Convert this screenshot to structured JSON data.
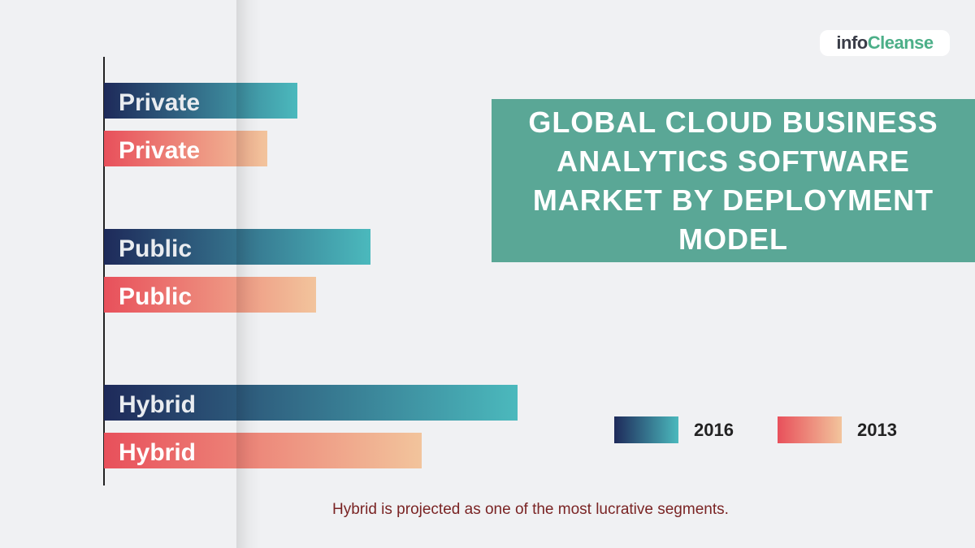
{
  "title": "GLOBAL CLOUD BUSINESS ANALYTICS SOFTWARE MARKET BY DEPLOYMENT MODEL",
  "logo": {
    "part1": "info",
    "part2": "Cleanse"
  },
  "footnote": "Hybrid is projected as one of the most lucrative segments.",
  "colors": {
    "series_2016_start": "#1e2a5a",
    "series_2016_end": "#4bb9bd",
    "series_2013_start": "#e8505b",
    "series_2013_end": "#f2c49c",
    "title_bg": "#5aa796"
  },
  "chart_data": {
    "type": "bar",
    "orientation": "horizontal",
    "categories": [
      "Private",
      "Public",
      "Hybrid"
    ],
    "series": [
      {
        "name": "2016",
        "values": [
          238,
          328,
          509
        ]
      },
      {
        "name": "2013",
        "values": [
          201,
          261,
          391
        ]
      }
    ],
    "xlim": [
      0,
      520
    ],
    "legend": "bottom-right",
    "grid": false,
    "title": "GLOBAL CLOUD BUSINESS ANALYTICS SOFTWARE MARKET BY DEPLOYMENT MODEL"
  }
}
